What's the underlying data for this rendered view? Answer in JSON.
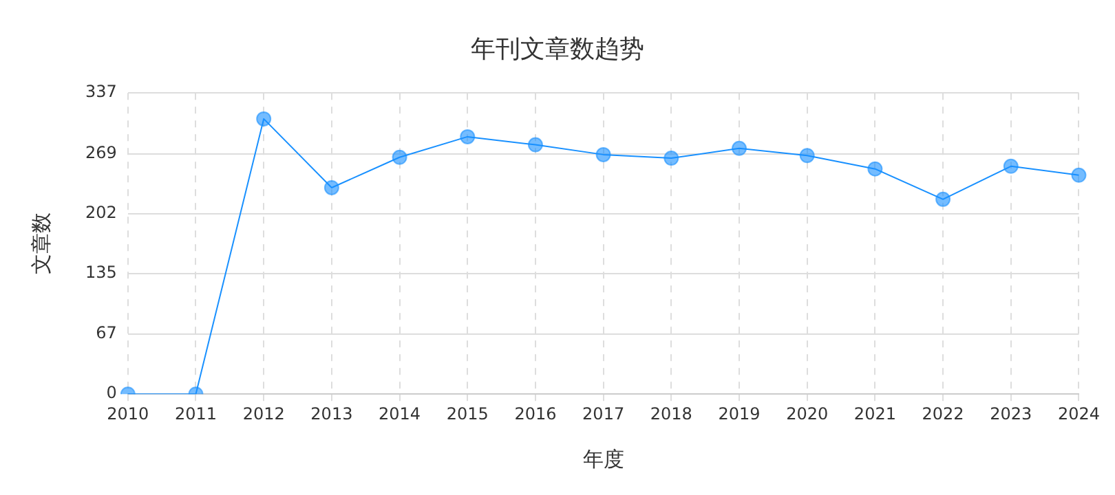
{
  "chart_data": {
    "type": "line",
    "title": "年刊文章数趋势",
    "xlabel": "年度",
    "ylabel": "文章数",
    "categories": [
      "2010",
      "2011",
      "2012",
      "2013",
      "2014",
      "2015",
      "2016",
      "2017",
      "2018",
      "2019",
      "2020",
      "2021",
      "2022",
      "2023",
      "2024"
    ],
    "series": [
      {
        "color": "#1890ff",
        "values": [
          0,
          0,
          308,
          231,
          265,
          288,
          279,
          268,
          264,
          275,
          267,
          252,
          218,
          255,
          245
        ]
      }
    ],
    "ylim": [
      0,
      337
    ],
    "yticks": [
      0,
      67,
      135,
      202,
      269,
      337
    ],
    "grid": true,
    "marker": "circle",
    "line_style": "solid"
  }
}
